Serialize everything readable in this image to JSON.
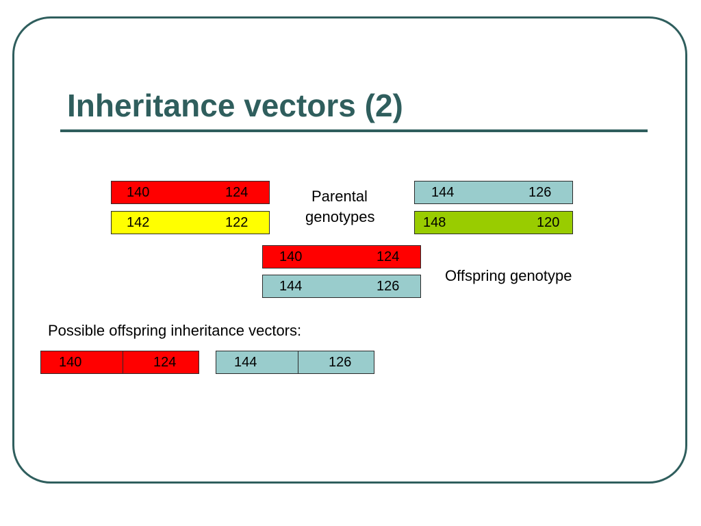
{
  "title": "Inheritance vectors (2)",
  "colors": {
    "theme": "#2f5e5d",
    "red": "#ff0000",
    "yellow": "#ffff00",
    "teal": "#99cccc",
    "green": "#99cc00"
  },
  "parents": {
    "left_top": {
      "a": "140",
      "b": "124",
      "color": "#ff0000"
    },
    "left_bottom": {
      "a": "142",
      "b": "122",
      "color": "#ffff00"
    },
    "right_top": {
      "a": "144",
      "b": "126",
      "color": "#99cccc"
    },
    "right_bottom": {
      "a": "148",
      "b": "120",
      "color": "#99cc00"
    },
    "label_line1": "Parental",
    "label_line2": "genotypes"
  },
  "offspring": {
    "top": {
      "a": "140",
      "b": "124",
      "color": "#ff0000"
    },
    "bottom": {
      "a": "144",
      "b": "126",
      "color": "#99cccc"
    },
    "label": "Offspring genotype"
  },
  "vectors": {
    "heading": "Possible offspring inheritance vectors:",
    "items": [
      {
        "a": "140",
        "b": "124",
        "color": "#ff0000"
      },
      {
        "a": "144",
        "b": "126",
        "color": "#99cccc"
      }
    ]
  }
}
